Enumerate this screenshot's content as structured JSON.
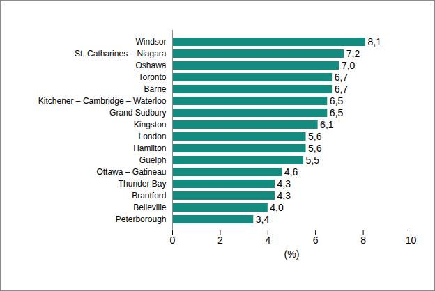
{
  "chart_data": {
    "type": "bar",
    "orientation": "horizontal",
    "categories": [
      "Windsor",
      "St. Catharines – Niagara",
      "Oshawa",
      "Toronto",
      "Barrie",
      "Kitchener – Cambridge – Waterloo",
      "Grand Sudbury",
      "Kingston",
      "London",
      "Hamilton",
      "Guelph",
      "Ottawa – Gatineau",
      "Thunder Bay",
      "Brantford",
      "Belleville",
      "Peterborough"
    ],
    "values": [
      8.1,
      7.2,
      7.0,
      6.7,
      6.7,
      6.5,
      6.5,
      6.1,
      5.6,
      5.6,
      5.5,
      4.6,
      4.3,
      4.3,
      4.0,
      3.4
    ],
    "value_labels": [
      "8,1",
      "7,2",
      "7,0",
      "6,7",
      "6,7",
      "6,5",
      "6,5",
      "6,1",
      "5,6",
      "5,6",
      "5,5",
      "4,6",
      "4,3",
      "4,3",
      "4,0",
      "3,4"
    ],
    "data_labels": true,
    "color": "#138b7e",
    "x_label": "(%)",
    "xlim": [
      0,
      10
    ],
    "xticks": [
      0,
      2,
      4,
      6,
      8,
      10
    ],
    "grid": false
  }
}
